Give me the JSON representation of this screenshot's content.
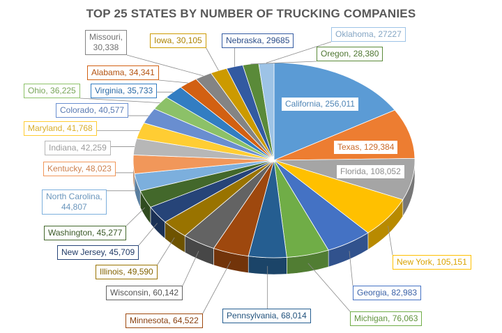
{
  "chart_data": {
    "type": "pie",
    "title": "TOP 25 STATES BY NUMBER OF TRUCKING COMPANIES",
    "slices": [
      {
        "label": "California",
        "value_text": "256,011",
        "value": 256011,
        "color": "#5B9BD5"
      },
      {
        "label": "Texas",
        "value_text": "129,384",
        "value": 129384,
        "color": "#ED7D31"
      },
      {
        "label": "Florida",
        "value_text": "108,052",
        "value": 108052,
        "color": "#A5A5A5"
      },
      {
        "label": "New York",
        "value_text": "105,151",
        "value": 105151,
        "color": "#FFC000"
      },
      {
        "label": "Georgia",
        "value_text": "82,983",
        "value": 82983,
        "color": "#4472C4"
      },
      {
        "label": "Michigan",
        "value_text": "76,063",
        "value": 76063,
        "color": "#70AD47"
      },
      {
        "label": "Pennsylvania",
        "value_text": "68,014",
        "value": 68014,
        "color": "#255E91"
      },
      {
        "label": "Minnesota",
        "value_text": "64,522",
        "value": 64522,
        "color": "#9E480E"
      },
      {
        "label": "Wisconsin",
        "value_text": "60,142",
        "value": 60142,
        "color": "#636363"
      },
      {
        "label": "Illinois",
        "value_text": "49,590",
        "value": 49590,
        "color": "#997300"
      },
      {
        "label": "New Jersey",
        "value_text": "45,709",
        "value": 45709,
        "color": "#264478"
      },
      {
        "label": "Washington",
        "value_text": "45,277",
        "value": 45277,
        "color": "#43682B"
      },
      {
        "label": "North Carolina",
        "value_text": "44,807",
        "value": 44807,
        "color": "#7CAFDD"
      },
      {
        "label": "Kentucky",
        "value_text": "48,023",
        "value": 48023,
        "color": "#F1975A"
      },
      {
        "label": "Indiana",
        "value_text": "42,259",
        "value": 42259,
        "color": "#B7B7B7"
      },
      {
        "label": "Maryland",
        "value_text": "41,768",
        "value": 41768,
        "color": "#FFCD33"
      },
      {
        "label": "Colorado",
        "value_text": "40,577",
        "value": 40577,
        "color": "#698ED0"
      },
      {
        "label": "Ohio",
        "value_text": "36,225",
        "value": 36225,
        "color": "#8CC168"
      },
      {
        "label": "Virginia",
        "value_text": "35,733",
        "value": 35733,
        "color": "#327DC2"
      },
      {
        "label": "Alabama",
        "value_text": "34,341",
        "value": 34341,
        "color": "#D26012"
      },
      {
        "label": "Missouri",
        "value_text": "30,338",
        "value": 30338,
        "color": "#848484"
      },
      {
        "label": "Iowa",
        "value_text": "30,105",
        "value": 30105,
        "color": "#CC9A00"
      },
      {
        "label": "Nebraska",
        "value_text": "29685",
        "value": 29685,
        "color": "#335AA1"
      },
      {
        "label": "Oregon",
        "value_text": "28,380",
        "value": 28380,
        "color": "#5A8A39"
      },
      {
        "label": "Oklahoma",
        "value_text": "27227",
        "value": 27227,
        "color": "#9DC3E6"
      }
    ]
  }
}
